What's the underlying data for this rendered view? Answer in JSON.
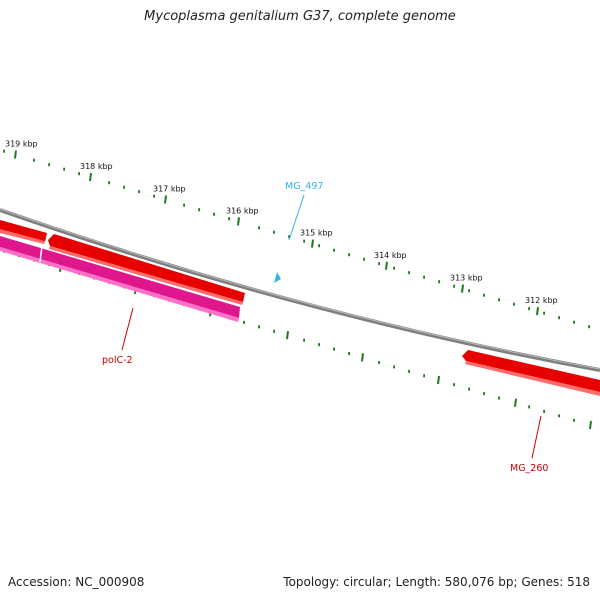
{
  "title": "Mycoplasma genitalium G37, complete genome",
  "footer": {
    "accession": "Accession: NC_000908",
    "summary": "Topology: circular; Length: 580,076 bp; Genes: 518"
  },
  "colors": {
    "backbone": "#7f7f7f",
    "forward_gene": "#e60000",
    "forward_gene_shade": "#ff6a6a",
    "reverse_gene": "#e0168c",
    "reverse_gene_shade": "#ff70c8",
    "tick": "#1e7a1e",
    "label_red": "#cc0000",
    "label_blue": "#33b5e5"
  },
  "ticks": [
    {
      "label": "319 kbp"
    },
    {
      "label": "318 kbp"
    },
    {
      "label": "317 kbp"
    },
    {
      "label": "316 kbp"
    },
    {
      "label": "315 kbp"
    },
    {
      "label": "314 kbp"
    },
    {
      "label": "313 kbp"
    },
    {
      "label": "312 kbp"
    }
  ],
  "genes": [
    {
      "name": "polC-2",
      "strand": "reverse"
    },
    {
      "name": "MG_260",
      "strand": "forward"
    },
    {
      "name": "MG_497",
      "strand": "marker"
    }
  ]
}
